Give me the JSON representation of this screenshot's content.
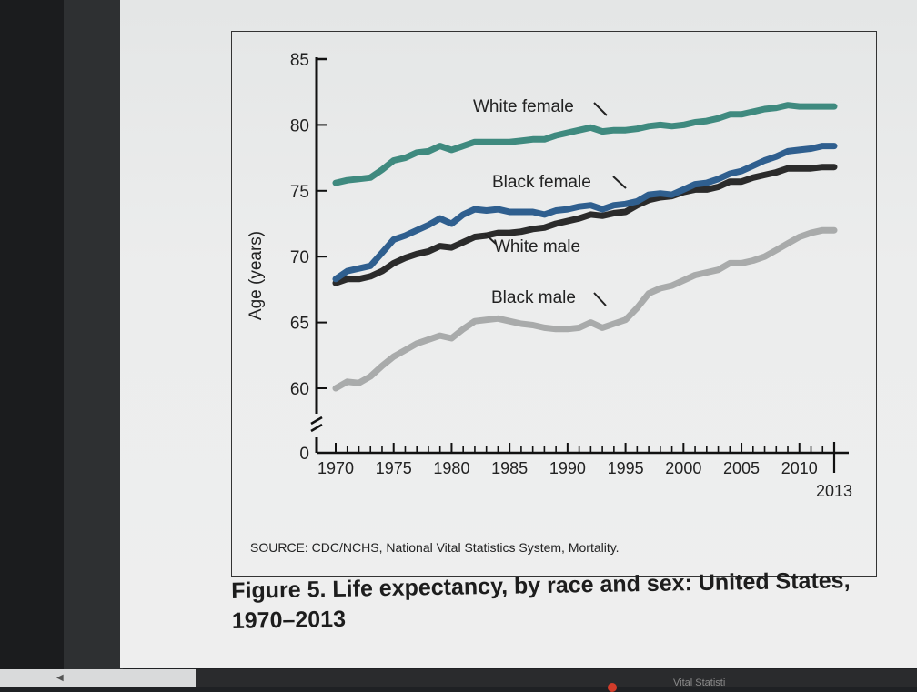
{
  "figure": {
    "caption_line1": "Figure 5. Life expectancy, by race and sex: United States,",
    "caption_line2": "1970–2013",
    "source": "SOURCE: CDC/NCHS, National Vital Statistics System, Mortality."
  },
  "taskbar": {
    "partial_text": "Vital Statisti"
  },
  "chart_data": {
    "type": "line",
    "title": "",
    "xlabel": "",
    "ylabel": "Age (years)",
    "xlim": [
      1970,
      2013
    ],
    "ylim": [
      60,
      85
    ],
    "y_break": true,
    "y_ticks": [
      0,
      60,
      65,
      70,
      75,
      80,
      85
    ],
    "x_tick_labels": [
      "1970",
      "1975",
      "1980",
      "1985",
      "1990",
      "1995",
      "2000",
      "2005",
      "2010",
      "2013"
    ],
    "x_tick_values": [
      1970,
      1975,
      1980,
      1985,
      1990,
      1995,
      2000,
      2005,
      2010,
      2013
    ],
    "grid": false,
    "x": [
      1970,
      1971,
      1972,
      1973,
      1974,
      1975,
      1976,
      1977,
      1978,
      1979,
      1980,
      1981,
      1982,
      1983,
      1984,
      1985,
      1986,
      1987,
      1988,
      1989,
      1990,
      1991,
      1992,
      1993,
      1994,
      1995,
      1996,
      1997,
      1998,
      1999,
      2000,
      2001,
      2002,
      2003,
      2004,
      2005,
      2006,
      2007,
      2008,
      2009,
      2010,
      2011,
      2012,
      2013
    ],
    "series": [
      {
        "name": "White female",
        "color": "#3f8a7f",
        "values": [
          75.6,
          75.8,
          75.9,
          76.0,
          76.6,
          77.3,
          77.5,
          77.9,
          78.0,
          78.4,
          78.1,
          78.4,
          78.7,
          78.7,
          78.7,
          78.7,
          78.8,
          78.9,
          78.9,
          79.2,
          79.4,
          79.6,
          79.8,
          79.5,
          79.6,
          79.6,
          79.7,
          79.9,
          80.0,
          79.9,
          80.0,
          80.2,
          80.3,
          80.5,
          80.8,
          80.8,
          81.0,
          81.2,
          81.3,
          81.5,
          81.4,
          81.4,
          81.4,
          81.4
        ]
      },
      {
        "name": "Black female",
        "color": "#2f5f8f",
        "values": [
          68.3,
          68.9,
          69.1,
          69.3,
          70.3,
          71.3,
          71.6,
          72.0,
          72.4,
          72.9,
          72.5,
          73.2,
          73.6,
          73.5,
          73.6,
          73.4,
          73.4,
          73.4,
          73.2,
          73.5,
          73.6,
          73.8,
          73.9,
          73.6,
          73.9,
          74.0,
          74.2,
          74.7,
          74.8,
          74.7,
          75.1,
          75.5,
          75.6,
          75.9,
          76.3,
          76.5,
          76.9,
          77.3,
          77.6,
          78.0,
          78.1,
          78.2,
          78.4,
          78.4
        ]
      },
      {
        "name": "White male",
        "color": "#2b2b2b",
        "values": [
          68.0,
          68.3,
          68.3,
          68.5,
          68.9,
          69.5,
          69.9,
          70.2,
          70.4,
          70.8,
          70.7,
          71.1,
          71.5,
          71.6,
          71.8,
          71.8,
          71.9,
          72.1,
          72.2,
          72.5,
          72.7,
          72.9,
          73.2,
          73.1,
          73.3,
          73.4,
          73.9,
          74.3,
          74.5,
          74.6,
          74.9,
          75.1,
          75.1,
          75.3,
          75.7,
          75.7,
          76.0,
          76.2,
          76.4,
          76.7,
          76.7,
          76.7,
          76.8,
          76.8
        ]
      },
      {
        "name": "Black male",
        "color": "#a9abab",
        "values": [
          60.0,
          60.5,
          60.4,
          60.9,
          61.7,
          62.4,
          62.9,
          63.4,
          63.7,
          64.0,
          63.8,
          64.5,
          65.1,
          65.2,
          65.3,
          65.1,
          64.9,
          64.8,
          64.6,
          64.5,
          64.5,
          64.6,
          65.0,
          64.6,
          64.9,
          65.2,
          66.1,
          67.2,
          67.6,
          67.8,
          68.2,
          68.6,
          68.8,
          69.0,
          69.5,
          69.5,
          69.7,
          70.0,
          70.5,
          71.0,
          71.5,
          71.8,
          72.0,
          72.0
        ]
      }
    ]
  }
}
